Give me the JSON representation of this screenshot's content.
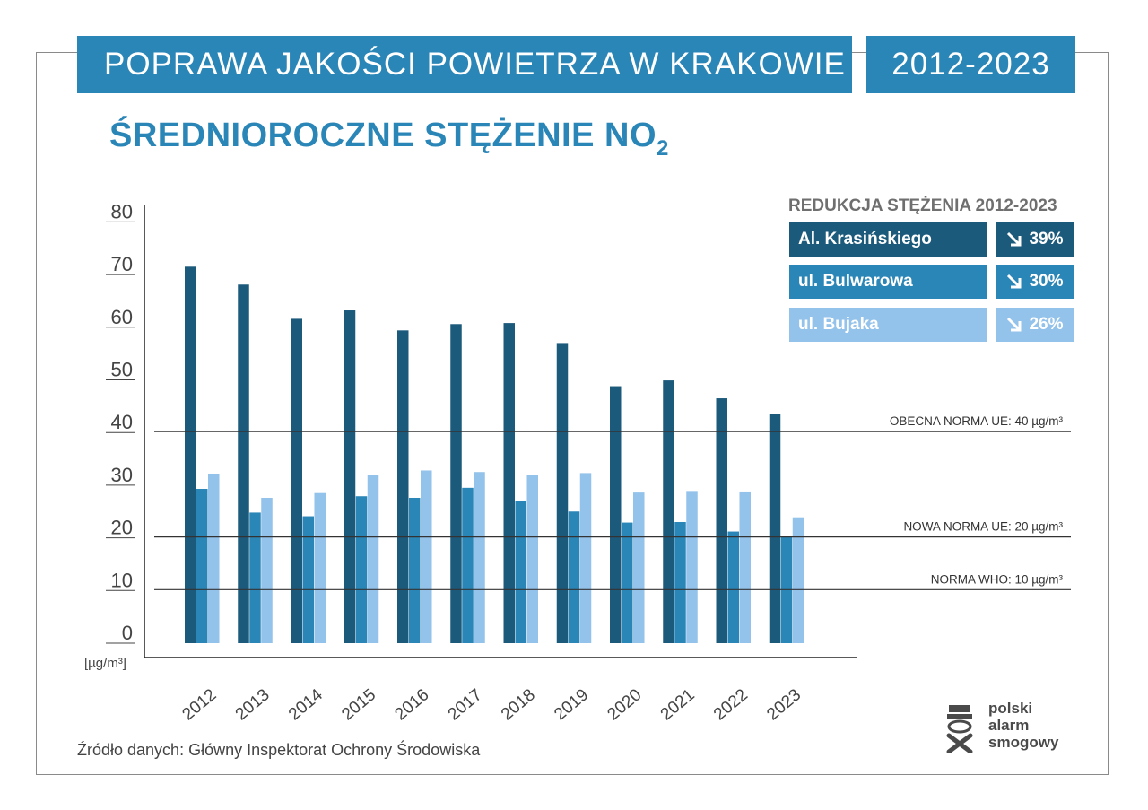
{
  "header": {
    "title": "POPRAWA JAKOŚCI POWIETRZA W KRAKOWIE",
    "years": "2012-2023"
  },
  "subtitle": {
    "main": "ŚREDNIOROCZNE STĘŻENIE NO",
    "sub": "2"
  },
  "legend": {
    "title": "REDUKCJA STĘŻENIA 2012-2023",
    "items": [
      {
        "name": "Al. Krasińskiego",
        "reduction": "39%",
        "color": "#1c5a7c"
      },
      {
        "name": "ul. Bulwarowa",
        "reduction": "30%",
        "color": "#2b86b8"
      },
      {
        "name": "ul. Bujaka",
        "reduction": "26%",
        "color": "#93c2ea"
      }
    ]
  },
  "source": "Źródło danych: Główny Inspektorat Ochrony Środowiska",
  "logo": {
    "line1": "polski",
    "line2": "alarm",
    "line3": "smogowy",
    "icon": "smog-mask-icon"
  },
  "chart_data": {
    "type": "bar",
    "unit_label": "[µg/m³]",
    "categories": [
      "2012",
      "2013",
      "2014",
      "2015",
      "2016",
      "2017",
      "2018",
      "2019",
      "2020",
      "2021",
      "2022",
      "2023"
    ],
    "series": [
      {
        "name": "Al. Krasińskiego",
        "color": "#1c5a7c",
        "values": [
          71.5,
          68.1,
          61.6,
          63.2,
          59.4,
          60.6,
          60.8,
          57.0,
          48.8,
          49.9,
          46.5,
          43.6
        ]
      },
      {
        "name": "ul. Bulwarowa",
        "color": "#2b86b8",
        "values": [
          29.3,
          24.8,
          24.1,
          27.9,
          27.6,
          29.5,
          27.0,
          25.0,
          22.9,
          23.0,
          21.2,
          20.4
        ]
      },
      {
        "name": "ul. Bujaka",
        "color": "#93c2ea",
        "values": [
          32.2,
          27.6,
          28.5,
          32.0,
          32.8,
          32.5,
          32.0,
          32.3,
          28.6,
          28.9,
          28.8,
          23.9
        ]
      }
    ],
    "y_ticks": [
      0,
      10,
      20,
      30,
      40,
      50,
      60,
      70,
      80
    ],
    "ylim": [
      0,
      80
    ],
    "reference_lines": [
      {
        "value": 40,
        "label": "OBECNA NORMA UE: 40 µg/m³"
      },
      {
        "value": 20,
        "label": "NOWA NORMA UE: 20 µg/m³"
      },
      {
        "value": 10,
        "label": "NORMA WHO: 10 µg/m³"
      }
    ],
    "grid": false,
    "legend_position": "top-right"
  }
}
